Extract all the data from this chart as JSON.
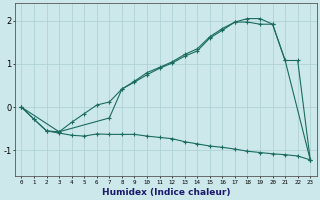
{
  "xlabel": "Humidex (Indice chaleur)",
  "bg_color": "#cde8ea",
  "grid_color": "#aacfd2",
  "line_color": "#1a6b60",
  "xlim": [
    -0.5,
    23.5
  ],
  "ylim": [
    -1.6,
    2.4
  ],
  "xticks": [
    0,
    1,
    2,
    3,
    4,
    5,
    6,
    7,
    8,
    9,
    10,
    11,
    12,
    13,
    14,
    15,
    16,
    17,
    18,
    19,
    20,
    21,
    22,
    23
  ],
  "yticks": [
    -1,
    0,
    1,
    2
  ],
  "line1_x": [
    0,
    1,
    2,
    3,
    4,
    5,
    6,
    7,
    8,
    9,
    10,
    11,
    12,
    13,
    14,
    15,
    16,
    17,
    18,
    19,
    20,
    21,
    22,
    23
  ],
  "line1_y": [
    0.0,
    -0.28,
    -0.55,
    -0.6,
    -0.65,
    -0.67,
    -0.62,
    -0.63,
    -0.63,
    -0.63,
    -0.67,
    -0.7,
    -0.73,
    -0.8,
    -0.85,
    -0.9,
    -0.93,
    -0.97,
    -1.02,
    -1.05,
    -1.08,
    -1.1,
    -1.13,
    -1.22
  ],
  "line2_x": [
    0,
    1,
    2,
    3,
    4,
    5,
    6,
    7,
    8,
    9,
    10,
    11,
    12,
    13,
    14,
    15,
    16,
    17,
    18,
    19,
    20,
    21,
    22,
    23
  ],
  "line2_y": [
    0.0,
    -0.28,
    -0.55,
    -0.57,
    -0.35,
    -0.15,
    0.05,
    0.12,
    0.42,
    0.58,
    0.75,
    0.9,
    1.02,
    1.18,
    1.3,
    1.6,
    1.78,
    1.97,
    1.97,
    1.92,
    1.92,
    1.08,
    1.08,
    -1.22
  ],
  "line3_x": [
    0,
    3,
    7,
    8,
    9,
    10,
    11,
    12,
    13,
    14,
    15,
    16,
    17,
    18,
    19,
    20,
    21,
    23
  ],
  "line3_y": [
    0.0,
    -0.57,
    -0.25,
    0.42,
    0.6,
    0.8,
    0.92,
    1.05,
    1.22,
    1.35,
    1.63,
    1.82,
    1.97,
    2.05,
    2.05,
    1.92,
    1.08,
    -1.22
  ]
}
